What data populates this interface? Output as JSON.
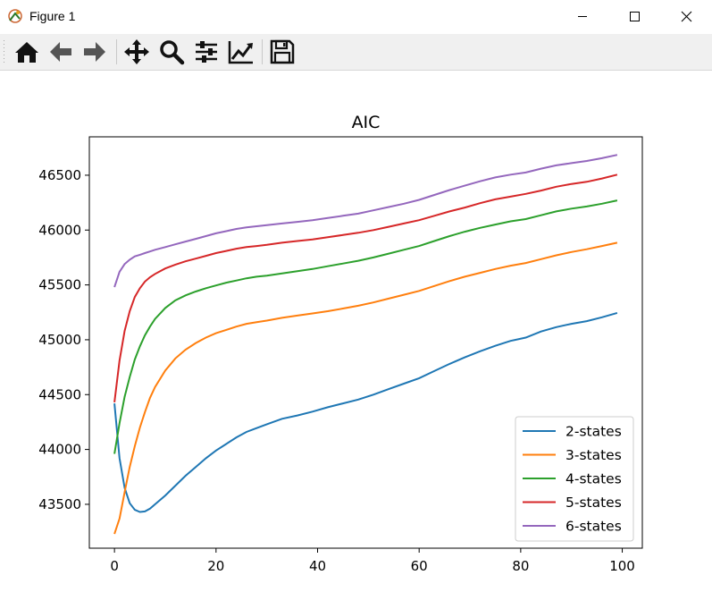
{
  "window": {
    "title": "Figure 1",
    "buttons": [
      "minimize",
      "maximize",
      "close"
    ]
  },
  "toolbar": {
    "tools": [
      "home-icon",
      "back-icon",
      "forward-icon",
      "pan-icon",
      "zoom-icon",
      "configure-subplots-icon",
      "edit-axis-icon",
      "save-icon"
    ]
  },
  "chart_data": {
    "type": "line",
    "title": "AIC",
    "xlabel": "",
    "ylabel": "",
    "xlim": [
      -4.95,
      103.95
    ],
    "ylim": [
      43100,
      46850
    ],
    "xticks": [
      0,
      20,
      40,
      60,
      80,
      100
    ],
    "yticks": [
      43500,
      44000,
      44500,
      45000,
      45500,
      46000,
      46500
    ],
    "grid": false,
    "legend": "lower-right",
    "series": [
      {
        "name": "2-states",
        "color": "#1f77b4",
        "x": [
          0,
          1,
          2,
          3,
          4,
          5,
          6,
          7,
          8,
          10,
          12,
          14,
          16,
          18,
          20,
          22,
          24,
          26,
          28,
          30,
          33,
          36,
          39,
          42,
          45,
          48,
          51,
          54,
          57,
          60,
          63,
          66,
          69,
          72,
          75,
          78,
          81,
          84,
          87,
          90,
          93,
          96,
          99
        ],
        "y": [
          44420,
          43920,
          43650,
          43510,
          43450,
          43430,
          43435,
          43460,
          43500,
          43580,
          43670,
          43760,
          43840,
          43920,
          43990,
          44050,
          44110,
          44160,
          44195,
          44230,
          44280,
          44310,
          44345,
          44385,
          44420,
          44455,
          44500,
          44550,
          44600,
          44650,
          44715,
          44780,
          44840,
          44895,
          44945,
          44990,
          45020,
          45075,
          45115,
          45145,
          45170,
          45205,
          45245
        ]
      },
      {
        "name": "3-states",
        "color": "#ff7f0e",
        "x": [
          0,
          1,
          2,
          3,
          4,
          5,
          6,
          7,
          8,
          10,
          12,
          14,
          16,
          18,
          20,
          22,
          24,
          26,
          28,
          30,
          33,
          36,
          39,
          42,
          45,
          48,
          51,
          54,
          57,
          60,
          63,
          66,
          69,
          72,
          75,
          78,
          81,
          84,
          87,
          90,
          93,
          96,
          99
        ],
        "y": [
          43230,
          43370,
          43610,
          43840,
          44030,
          44200,
          44340,
          44470,
          44570,
          44720,
          44830,
          44910,
          44970,
          45020,
          45060,
          45090,
          45120,
          45145,
          45160,
          45175,
          45200,
          45220,
          45240,
          45260,
          45285,
          45310,
          45340,
          45375,
          45410,
          45445,
          45490,
          45535,
          45575,
          45610,
          45645,
          45675,
          45700,
          45735,
          45770,
          45800,
          45825,
          45855,
          45885
        ]
      },
      {
        "name": "4-states",
        "color": "#2ca02c",
        "x": [
          0,
          1,
          2,
          3,
          4,
          5,
          6,
          7,
          8,
          10,
          12,
          14,
          16,
          18,
          20,
          22,
          24,
          26,
          28,
          30,
          33,
          36,
          39,
          42,
          45,
          48,
          51,
          54,
          57,
          60,
          63,
          66,
          69,
          72,
          75,
          78,
          81,
          84,
          87,
          90,
          93,
          96,
          99
        ],
        "y": [
          43960,
          44240,
          44480,
          44660,
          44820,
          44940,
          45040,
          45120,
          45190,
          45290,
          45360,
          45405,
          45440,
          45470,
          45495,
          45520,
          45540,
          45560,
          45575,
          45585,
          45605,
          45625,
          45645,
          45670,
          45695,
          45720,
          45750,
          45785,
          45820,
          45855,
          45900,
          45945,
          45985,
          46020,
          46050,
          46080,
          46100,
          46135,
          46170,
          46195,
          46215,
          46240,
          46270
        ]
      },
      {
        "name": "5-states",
        "color": "#d62728",
        "x": [
          0,
          1,
          2,
          3,
          4,
          5,
          6,
          7,
          8,
          10,
          12,
          14,
          16,
          18,
          20,
          22,
          24,
          26,
          28,
          30,
          33,
          36,
          39,
          42,
          45,
          48,
          51,
          54,
          57,
          60,
          63,
          66,
          69,
          72,
          75,
          78,
          81,
          84,
          87,
          90,
          93,
          96,
          99
        ],
        "y": [
          44430,
          44810,
          45080,
          45260,
          45390,
          45470,
          45530,
          45570,
          45600,
          45650,
          45685,
          45715,
          45740,
          45765,
          45790,
          45810,
          45830,
          45845,
          45855,
          45865,
          45885,
          45900,
          45915,
          45935,
          45955,
          45975,
          46000,
          46030,
          46060,
          46090,
          46130,
          46170,
          46205,
          46245,
          46280,
          46305,
          46330,
          46360,
          46395,
          46420,
          46440,
          46470,
          46505
        ]
      },
      {
        "name": "6-states",
        "color": "#9467bd",
        "x": [
          0,
          1,
          2,
          3,
          4,
          5,
          6,
          7,
          8,
          10,
          12,
          14,
          16,
          18,
          20,
          22,
          24,
          26,
          28,
          30,
          33,
          36,
          39,
          42,
          45,
          48,
          51,
          54,
          57,
          60,
          63,
          66,
          69,
          72,
          75,
          78,
          81,
          84,
          87,
          90,
          93,
          96,
          99
        ],
        "y": [
          45480,
          45620,
          45690,
          45730,
          45760,
          45775,
          45790,
          45805,
          45820,
          45845,
          45870,
          45895,
          45920,
          45945,
          45970,
          45990,
          46010,
          46025,
          46035,
          46045,
          46060,
          46075,
          46090,
          46110,
          46130,
          46150,
          46180,
          46210,
          46240,
          46275,
          46320,
          46365,
          46405,
          46445,
          46480,
          46505,
          46525,
          46560,
          46590,
          46610,
          46630,
          46655,
          46685
        ]
      }
    ]
  }
}
